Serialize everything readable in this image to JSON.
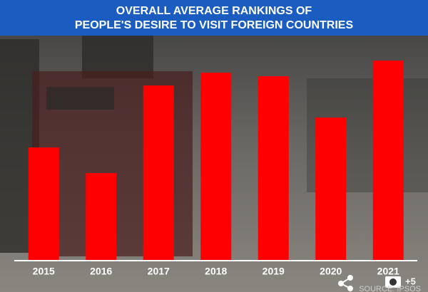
{
  "chart_data": {
    "type": "bar",
    "title_lines": [
      "OVERALL AVERAGE RANKINGS OF",
      "PEOPLE'S DESIRE TO VISIT FOREIGN COUNTRIES"
    ],
    "categories": [
      "2015",
      "2016",
      "2017",
      "2018",
      "2019",
      "2020",
      "2021"
    ],
    "values": [
      159,
      123,
      246,
      264,
      259,
      201,
      281
    ],
    "color": "#ff0000",
    "ylim": [
      0,
      300
    ],
    "source": "SOURCE: IPSOS",
    "photo_count": "+5"
  }
}
